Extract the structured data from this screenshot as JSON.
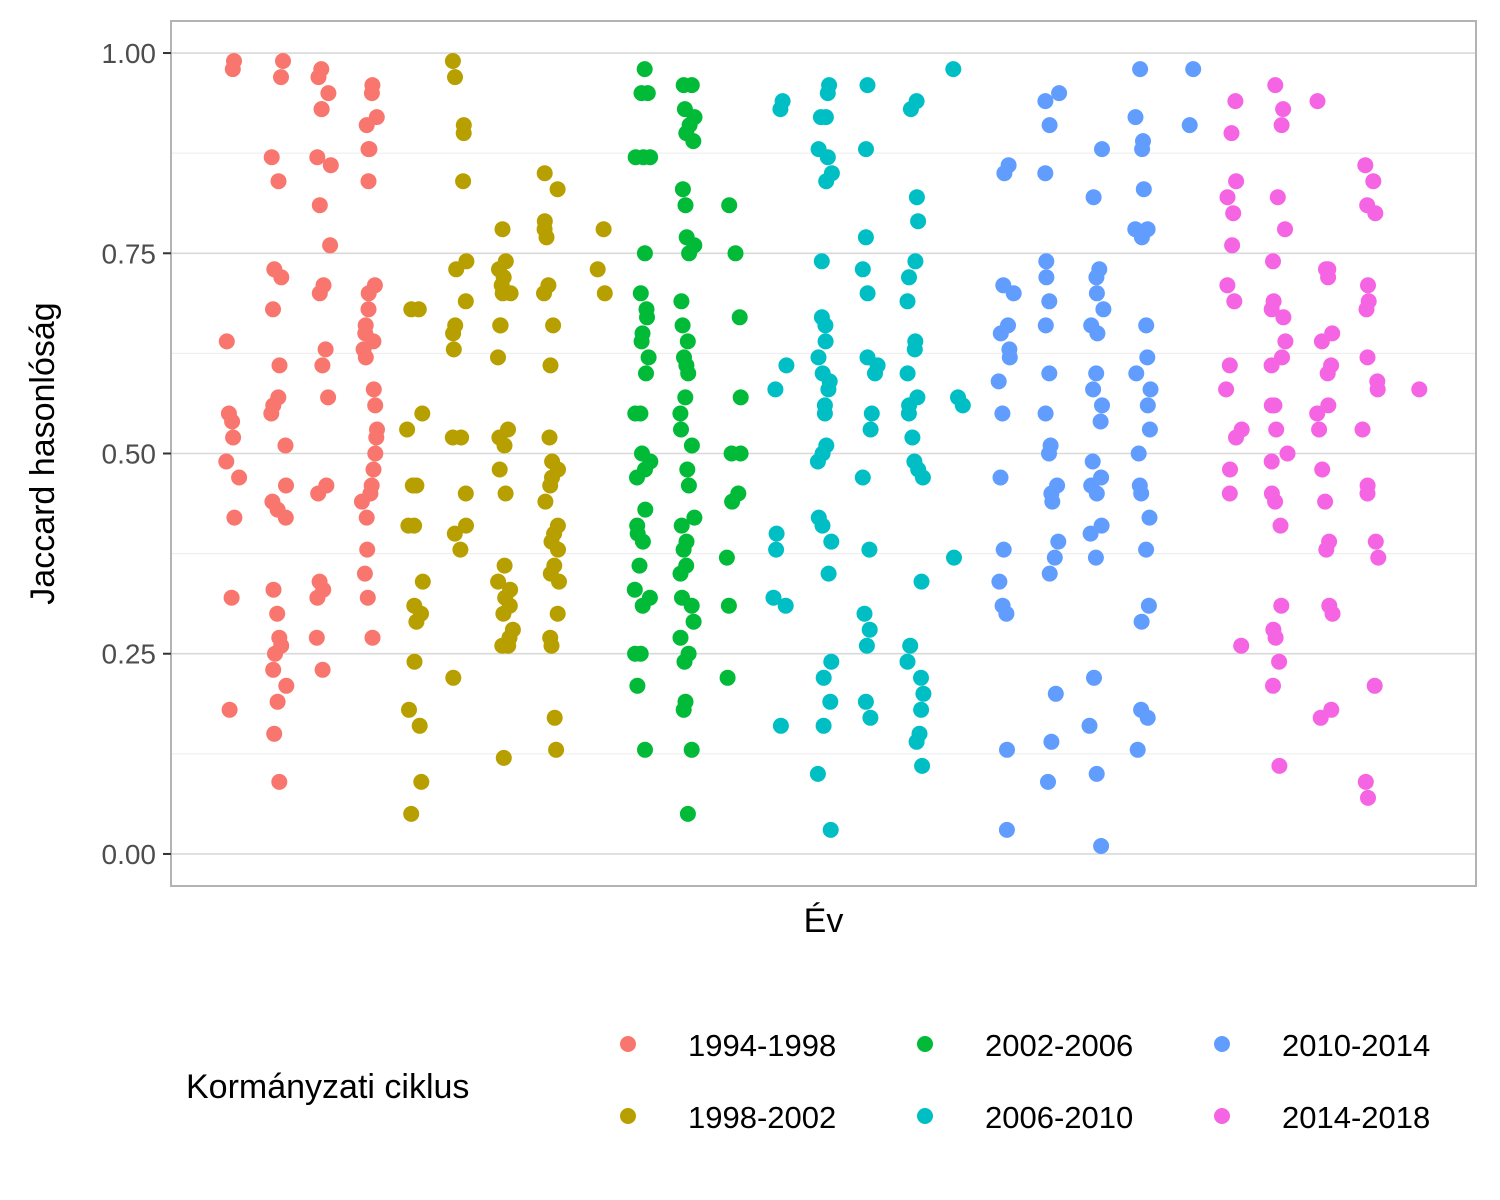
{
  "chart_data": {
    "type": "scatter",
    "xlabel": "Év",
    "ylabel": "Jaccard hasonlóság",
    "ylim": [
      -0.04,
      1.04
    ],
    "yticks": [
      "0.00",
      "0.25",
      "0.50",
      "0.75",
      "1.00"
    ],
    "grid": true,
    "legend": {
      "title": "Kormányzati ciklus",
      "position": "bottom"
    },
    "series": [
      {
        "name": "1994-1998",
        "color": "#F8766D",
        "columns": [
          [
            0.98,
            0.99,
            0.64,
            0.55,
            0.54,
            0.52,
            0.49,
            0.47,
            0.42,
            0.32,
            0.18
          ],
          [
            0.99,
            0.97,
            0.87,
            0.84,
            0.73,
            0.72,
            0.68,
            0.61,
            0.57,
            0.56,
            0.55,
            0.51,
            0.46,
            0.44,
            0.43,
            0.42,
            0.33,
            0.3,
            0.27,
            0.26,
            0.25,
            0.23,
            0.21,
            0.19,
            0.15,
            0.09
          ],
          [
            0.98,
            0.97,
            0.95,
            0.93,
            0.93,
            0.87,
            0.86,
            0.81,
            0.76,
            0.71,
            0.7,
            0.63,
            0.61,
            0.57,
            0.46,
            0.45,
            0.34,
            0.33,
            0.32,
            0.27,
            0.23
          ],
          [
            0.96,
            0.95,
            0.92,
            0.91,
            0.88,
            0.88,
            0.84,
            0.71,
            0.7,
            0.68,
            0.66,
            0.65,
            0.64,
            0.63,
            0.62,
            0.58,
            0.56,
            0.53,
            0.52,
            0.5,
            0.48,
            0.46,
            0.45,
            0.44,
            0.42,
            0.38,
            0.35,
            0.32,
            0.27
          ]
        ]
      },
      {
        "name": "1998-2002",
        "color": "#B79F00",
        "columns": [
          [
            0.68,
            0.68,
            0.55,
            0.53,
            0.46,
            0.46,
            0.41,
            0.41,
            0.34,
            0.31,
            0.3,
            0.29,
            0.24,
            0.18,
            0.16,
            0.09,
            0.05
          ],
          [
            0.99,
            0.97,
            0.91,
            0.9,
            0.84,
            0.74,
            0.73,
            0.69,
            0.66,
            0.65,
            0.63,
            0.52,
            0.52,
            0.45,
            0.41,
            0.4,
            0.38,
            0.22
          ],
          [
            0.78,
            0.74,
            0.73,
            0.72,
            0.71,
            0.7,
            0.7,
            0.66,
            0.66,
            0.62,
            0.53,
            0.52,
            0.51,
            0.48,
            0.45,
            0.36,
            0.34,
            0.33,
            0.32,
            0.31,
            0.3,
            0.28,
            0.27,
            0.26,
            0.26,
            0.12
          ],
          [
            0.85,
            0.83,
            0.79,
            0.78,
            0.77,
            0.71,
            0.7,
            0.66,
            0.61,
            0.52,
            0.49,
            0.48,
            0.47,
            0.46,
            0.44,
            0.41,
            0.4,
            0.39,
            0.38,
            0.36,
            0.35,
            0.34,
            0.3,
            0.27,
            0.26,
            0.17,
            0.13
          ],
          [
            0.78,
            0.73,
            0.7
          ]
        ]
      },
      {
        "name": "2002-2006",
        "color": "#00BA38",
        "columns": [
          [
            0.98,
            0.95,
            0.95,
            0.87,
            0.87,
            0.87,
            0.75,
            0.7,
            0.68,
            0.67,
            0.65,
            0.64,
            0.62,
            0.6,
            0.55,
            0.55,
            0.5,
            0.49,
            0.48,
            0.47,
            0.43,
            0.41,
            0.4,
            0.39,
            0.36,
            0.33,
            0.32,
            0.31,
            0.25,
            0.25,
            0.21,
            0.13
          ],
          [
            0.96,
            0.96,
            0.93,
            0.92,
            0.91,
            0.9,
            0.89,
            0.83,
            0.81,
            0.77,
            0.76,
            0.75,
            0.69,
            0.66,
            0.64,
            0.62,
            0.61,
            0.6,
            0.57,
            0.55,
            0.53,
            0.51,
            0.48,
            0.46,
            0.42,
            0.41,
            0.39,
            0.38,
            0.36,
            0.35,
            0.32,
            0.31,
            0.29,
            0.27,
            0.25,
            0.24,
            0.19,
            0.18,
            0.13,
            0.05
          ],
          [
            0.81,
            0.75,
            0.67,
            0.57,
            0.5,
            0.5,
            0.45,
            0.44,
            0.37,
            0.31,
            0.22
          ]
        ]
      },
      {
        "name": "2006-2010",
        "color": "#00BFC4",
        "columns": [
          [
            0.94,
            0.93,
            0.61,
            0.58,
            0.4,
            0.38,
            0.32,
            0.31,
            0.16
          ],
          [
            0.96,
            0.95,
            0.92,
            0.92,
            0.88,
            0.87,
            0.85,
            0.84,
            0.74,
            0.67,
            0.66,
            0.64,
            0.62,
            0.6,
            0.59,
            0.58,
            0.56,
            0.55,
            0.51,
            0.5,
            0.49,
            0.42,
            0.41,
            0.39,
            0.35,
            0.24,
            0.22,
            0.19,
            0.16,
            0.1,
            0.03
          ],
          [
            0.96,
            0.88,
            0.77,
            0.73,
            0.7,
            0.62,
            0.61,
            0.6,
            0.55,
            0.53,
            0.47,
            0.38,
            0.3,
            0.28,
            0.26,
            0.19,
            0.17
          ],
          [
            0.94,
            0.93,
            0.82,
            0.79,
            0.74,
            0.72,
            0.69,
            0.64,
            0.63,
            0.6,
            0.57,
            0.56,
            0.55,
            0.52,
            0.49,
            0.48,
            0.47,
            0.34,
            0.26,
            0.24,
            0.22,
            0.2,
            0.18,
            0.15,
            0.14,
            0.11
          ],
          [
            0.98,
            0.57,
            0.56,
            0.37
          ]
        ]
      },
      {
        "name": "2010-2014",
        "color": "#619CFF",
        "columns": [
          [
            0.86,
            0.85,
            0.71,
            0.7,
            0.66,
            0.65,
            0.63,
            0.62,
            0.59,
            0.55,
            0.47,
            0.38,
            0.34,
            0.31,
            0.3,
            0.13,
            0.03
          ],
          [
            0.95,
            0.94,
            0.91,
            0.85,
            0.74,
            0.72,
            0.69,
            0.66,
            0.6,
            0.55,
            0.51,
            0.5,
            0.46,
            0.45,
            0.44,
            0.39,
            0.37,
            0.35,
            0.2,
            0.14,
            0.09
          ],
          [
            0.88,
            0.82,
            0.73,
            0.72,
            0.7,
            0.68,
            0.66,
            0.65,
            0.6,
            0.58,
            0.56,
            0.54,
            0.49,
            0.47,
            0.46,
            0.45,
            0.41,
            0.4,
            0.37,
            0.22,
            0.16,
            0.1,
            0.01
          ],
          [
            0.98,
            0.92,
            0.89,
            0.88,
            0.83,
            0.78,
            0.78,
            0.77,
            0.66,
            0.62,
            0.6,
            0.58,
            0.56,
            0.53,
            0.5,
            0.46,
            0.45,
            0.42,
            0.38,
            0.31,
            0.29,
            0.18,
            0.17,
            0.13
          ],
          [
            0.98,
            0.91
          ]
        ]
      },
      {
        "name": "2014-2018",
        "color": "#F564E3",
        "columns": [
          [
            0.94,
            0.9,
            0.84,
            0.82,
            0.8,
            0.76,
            0.71,
            0.69,
            0.61,
            0.58,
            0.53,
            0.52,
            0.48,
            0.45,
            0.26
          ],
          [
            0.96,
            0.93,
            0.91,
            0.82,
            0.78,
            0.74,
            0.69,
            0.68,
            0.67,
            0.64,
            0.62,
            0.61,
            0.56,
            0.56,
            0.53,
            0.5,
            0.49,
            0.45,
            0.44,
            0.41,
            0.31,
            0.28,
            0.27,
            0.24,
            0.21,
            0.11
          ],
          [
            0.94,
            0.73,
            0.73,
            0.72,
            0.65,
            0.64,
            0.61,
            0.6,
            0.56,
            0.55,
            0.53,
            0.48,
            0.44,
            0.39,
            0.38,
            0.31,
            0.3,
            0.18,
            0.17
          ],
          [
            0.86,
            0.84,
            0.81,
            0.8,
            0.71,
            0.69,
            0.68,
            0.62,
            0.59,
            0.58,
            0.53,
            0.46,
            0.45,
            0.39,
            0.37,
            0.21,
            0.09,
            0.07
          ],
          [
            0.58
          ]
        ]
      }
    ]
  }
}
